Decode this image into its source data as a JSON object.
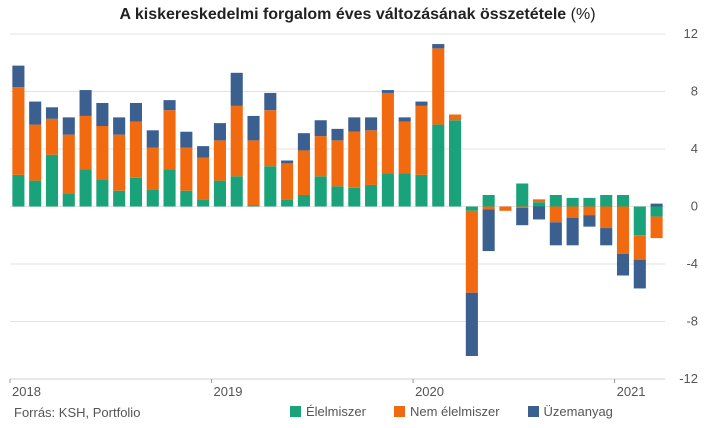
{
  "chart_data": {
    "type": "bar",
    "stacked": true,
    "title": "A kiskereskedelmi forgalom éves változásának összetétele",
    "title_unit": "(%)",
    "ylim": [
      -12,
      12
    ],
    "y_ticks": [
      12,
      8,
      4,
      0,
      -4,
      -8,
      -12
    ],
    "x_tick_labels": [
      {
        "label": "2018",
        "index": 0
      },
      {
        "label": "2019",
        "index": 12
      },
      {
        "label": "2020",
        "index": 24
      },
      {
        "label": "2021",
        "index": 36
      }
    ],
    "categories": [
      "2018-01",
      "2018-02",
      "2018-03",
      "2018-04",
      "2018-05",
      "2018-06",
      "2018-07",
      "2018-08",
      "2018-09",
      "2018-10",
      "2018-11",
      "2018-12",
      "2019-01",
      "2019-02",
      "2019-03",
      "2019-04",
      "2019-05",
      "2019-06",
      "2019-07",
      "2019-08",
      "2019-09",
      "2019-10",
      "2019-11",
      "2019-12",
      "2020-01",
      "2020-02",
      "2020-03",
      "2020-04",
      "2020-05",
      "2020-06",
      "2020-07",
      "2020-08",
      "2020-09",
      "2020-10",
      "2020-11",
      "2020-12",
      "2021-01",
      "2021-02",
      "2021-03"
    ],
    "series": [
      {
        "name": "Élelmiszer",
        "color": "#1aa37a",
        "values": [
          2.2,
          1.8,
          3.6,
          0.9,
          2.6,
          1.9,
          1.1,
          2.0,
          1.2,
          2.6,
          1.1,
          0.5,
          1.8,
          2.1,
          0.1,
          2.8,
          0.5,
          0.8,
          2.1,
          1.4,
          1.3,
          1.5,
          2.3,
          2.3,
          2.2,
          5.7,
          6.0,
          -0.3,
          0.8,
          0.0,
          1.6,
          0.3,
          0.8,
          0.6,
          0.6,
          0.8,
          0.8,
          -2.0,
          -0.7
        ]
      },
      {
        "name": "Nem élelmiszer",
        "color": "#f26a10",
        "values": [
          6.1,
          3.9,
          2.5,
          4.1,
          3.7,
          3.7,
          3.9,
          3.9,
          2.9,
          4.1,
          3.0,
          2.9,
          2.8,
          4.9,
          4.5,
          3.9,
          2.5,
          3.1,
          2.8,
          3.2,
          3.9,
          3.8,
          5.6,
          3.6,
          4.8,
          5.3,
          0.4,
          -5.7,
          -0.2,
          -0.3,
          -0.1,
          0.2,
          -1.1,
          -0.8,
          -0.6,
          -1.5,
          -3.3,
          -1.7,
          -1.5
        ]
      },
      {
        "name": "Üzemanyag",
        "color": "#3b5f8f",
        "values": [
          1.5,
          1.6,
          0.8,
          1.2,
          1.8,
          1.6,
          1.2,
          1.3,
          1.2,
          0.7,
          1.1,
          0.8,
          1.2,
          2.3,
          1.7,
          1.2,
          0.2,
          1.2,
          1.1,
          0.8,
          1.0,
          0.9,
          0.2,
          0.3,
          0.3,
          0.3,
          0.0,
          -4.4,
          -2.9,
          0.0,
          -1.2,
          -0.9,
          -1.6,
          -1.9,
          -0.8,
          -1.2,
          -1.5,
          -2.0,
          0.2
        ]
      }
    ],
    "grid": true,
    "legend_position": "bottom",
    "y_axis_position": "right"
  },
  "source_text": "Forrás: KSH, Portfolio"
}
